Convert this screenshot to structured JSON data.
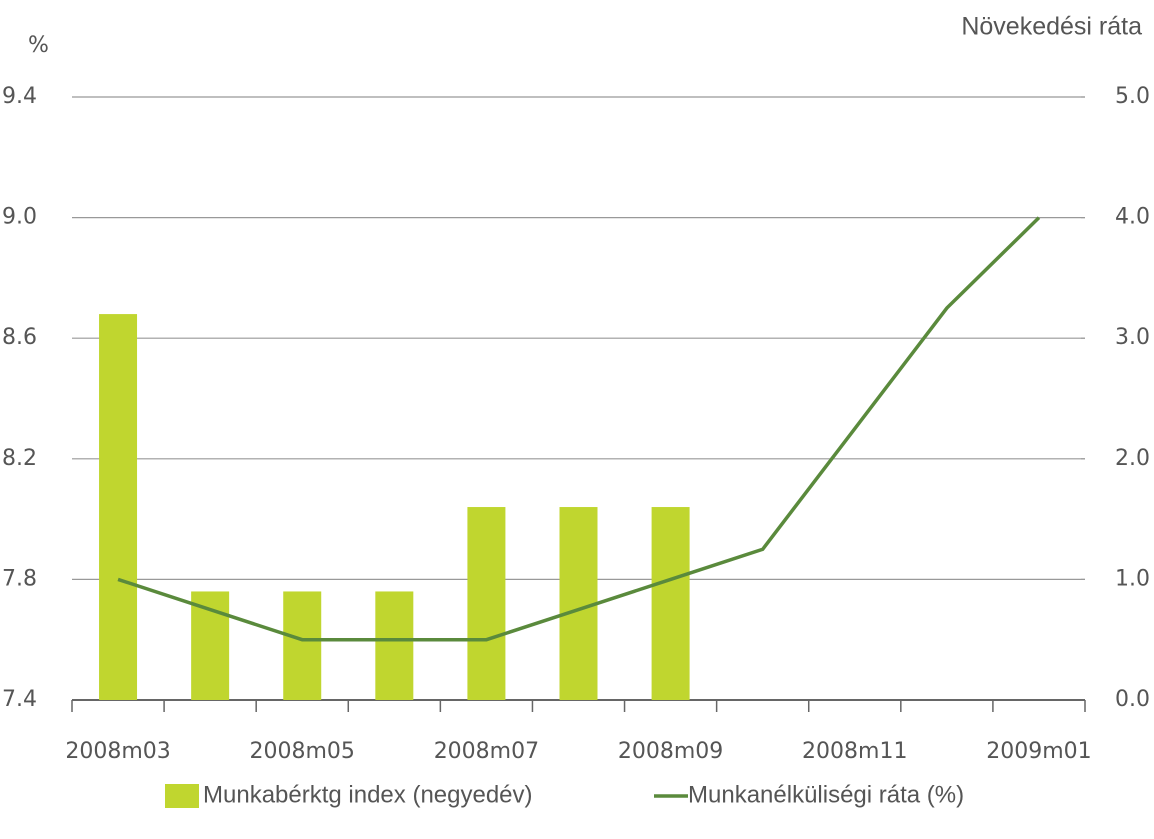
{
  "chart_data": {
    "type": "bar+line",
    "y_label": "%",
    "y2_label": "Növekedési ráta",
    "categories": [
      "2008m03",
      null,
      "2008m05",
      null,
      "2008m07",
      null,
      "2008m09",
      null,
      "2008m11",
      null,
      "2009m01"
    ],
    "series": [
      {
        "name": "Munkabérktg index (negyedév)",
        "type": "bar",
        "axis": "y2",
        "color": "#c0d62f",
        "values": [
          3.2,
          0.9,
          0.9,
          0.9,
          1.6,
          1.6,
          1.6,
          null,
          null,
          null,
          null
        ]
      },
      {
        "name": "Munkanélküliségi ráta (%)",
        "type": "line",
        "axis": "y",
        "color": "#5a8a3c",
        "values": [
          7.8,
          7.7,
          7.6,
          7.6,
          7.6,
          7.7,
          7.8,
          7.9,
          8.3,
          8.7,
          9.0
        ]
      }
    ],
    "ylim": [
      7.4,
      9.4
    ],
    "yticks": [
      7.4,
      7.8,
      8.2,
      8.6,
      {
        "value": 9,
        "label": "9.0"
      },
      9.4
    ],
    "y2lim": [
      0,
      5
    ],
    "y2ticks": [
      {
        "value": 0,
        "label": "0.0"
      },
      {
        "value": 1,
        "label": "1.0"
      },
      {
        "value": 2,
        "label": "2.0"
      },
      {
        "value": 3,
        "label": "3.0"
      },
      {
        "value": 4,
        "label": "4.0"
      },
      {
        "value": 5,
        "label": "5.0"
      }
    ],
    "grid": true,
    "legend": "bottom"
  }
}
